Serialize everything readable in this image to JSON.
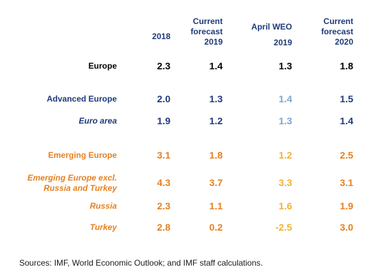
{
  "colors": {
    "black": "#000000",
    "navy": "#1f3a7a",
    "light_blue": "#7fa3d1",
    "orange": "#e6801f",
    "light_orange": "#f2b134"
  },
  "headers": {
    "col_2018": "2018",
    "col_current_2019": [
      "Current",
      "forecast",
      "2019"
    ],
    "col_april_2019": [
      "April WEO",
      "2019"
    ],
    "col_current_2020": [
      "Current",
      "forecast",
      "2020"
    ]
  },
  "rows": [
    {
      "label": "Europe",
      "values": [
        "2.3",
        "1.4",
        "1.3",
        "1.8"
      ]
    },
    {
      "label": "Advanced Europe",
      "values": [
        "2.0",
        "1.3",
        "1.4",
        "1.5"
      ]
    },
    {
      "label": "Euro area",
      "values": [
        "1.9",
        "1.2",
        "1.3",
        "1.4"
      ]
    },
    {
      "label": "Emerging Europe",
      "values": [
        "3.1",
        "1.8",
        "1.2",
        "2.5"
      ]
    },
    {
      "label_lines": [
        "Emerging Europe excl.",
        "Russia and Turkey"
      ],
      "values": [
        "4.3",
        "3.7",
        "3.3",
        "3.1"
      ]
    },
    {
      "label": "Russia",
      "values": [
        "2.3",
        "1.1",
        "1.6",
        "1.9"
      ]
    },
    {
      "label": "Turkey",
      "values": [
        "2.8",
        "0.2",
        "-2.5",
        "3.0"
      ]
    }
  ],
  "source": "Sources: IMF, World Economic Outlook; and IMF staff calculations."
}
